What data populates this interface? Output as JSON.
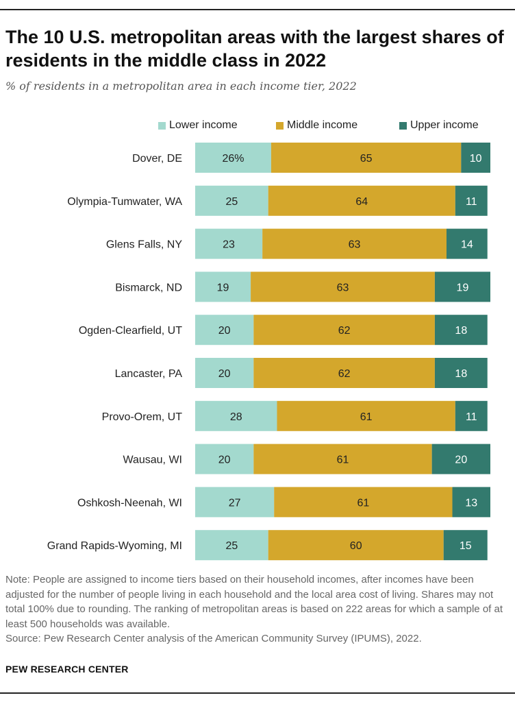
{
  "header": {
    "title": "The 10 U.S. metropolitan areas with the largest shares of residents in the middle class in 2022",
    "subtitle": "% of residents in a metropolitan area in each income tier, 2022"
  },
  "colors": {
    "lower": "#a3d9ce",
    "middle": "#d4a72c",
    "upper": "#337a6e"
  },
  "chart_data": {
    "type": "bar",
    "orientation": "horizontal",
    "stacked": true,
    "title": "The 10 U.S. metropolitan areas with the largest shares of residents in the middle class in 2022",
    "subtitle": "% of residents in a metropolitan area in each income tier, 2022",
    "xlim": [
      0,
      101
    ],
    "grid": false,
    "legend_position": "top-right",
    "categories": [
      "Dover, DE",
      "Olympia-Tumwater, WA",
      "Glens Falls, NY",
      "Bismarck, ND",
      "Ogden-Clearfield, UT",
      "Lancaster, PA",
      "Provo-Orem, UT",
      "Wausau, WI",
      "Oshkosh-Neenah, WI",
      "Grand Rapids-Wyoming, MI"
    ],
    "series": [
      {
        "name": "Lower income",
        "values": [
          26,
          25,
          23,
          19,
          20,
          20,
          28,
          20,
          27,
          25
        ],
        "labels": [
          "26%",
          "25",
          "23",
          "19",
          "20",
          "20",
          "28",
          "20",
          "27",
          "25"
        ]
      },
      {
        "name": "Middle income",
        "values": [
          65,
          64,
          63,
          63,
          62,
          62,
          61,
          61,
          61,
          60
        ],
        "labels": [
          "65",
          "64",
          "63",
          "63",
          "62",
          "62",
          "61",
          "61",
          "61",
          "60"
        ]
      },
      {
        "name": "Upper income",
        "values": [
          10,
          11,
          14,
          19,
          18,
          18,
          11,
          20,
          13,
          15
        ],
        "labels": [
          "10",
          "11",
          "14",
          "19",
          "18",
          "18",
          "11",
          "20",
          "13",
          "15"
        ]
      }
    ]
  },
  "footer": {
    "note": "Note: People are assigned to income tiers based on their household incomes, after incomes have been adjusted for the number of people living in each household and the local area cost of living. Shares may not total 100% due to rounding. The ranking of metropolitan areas is based on 222 areas for which a sample of at least 500 households was available.",
    "source": "Source: Pew Research Center analysis of the American Community Survey (IPUMS), 2022.",
    "brand": "PEW RESEARCH CENTER"
  }
}
